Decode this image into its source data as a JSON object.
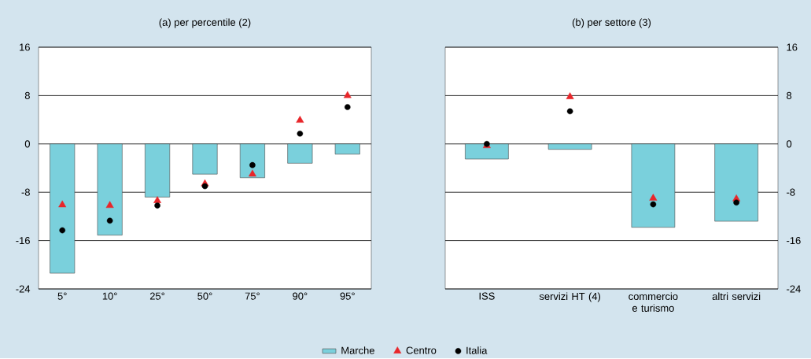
{
  "chart_data": [
    {
      "type": "bar",
      "title": "(a) per percentile (2)",
      "categories": [
        "5°",
        "10°",
        "25°",
        "50°",
        "75°",
        "90°",
        "95°"
      ],
      "ylim": [
        -24,
        16
      ],
      "yticks": [
        -24,
        -16,
        -8,
        0,
        8,
        16
      ],
      "grid": "y",
      "legend": "bottom",
      "series": [
        {
          "name": "Marche",
          "color": "#7ad0dc",
          "values": [
            -21.4,
            -15.1,
            -8.8,
            -5.0,
            -5.6,
            -3.2,
            -1.7
          ]
        },
        {
          "name": "Centro",
          "type": "scatter",
          "marker": "triangle",
          "color": "#e8262a",
          "values": [
            -10.1,
            -10.2,
            -9.4,
            -6.6,
            -5.0,
            3.9,
            8.0
          ]
        },
        {
          "name": "Italia",
          "type": "scatter",
          "marker": "circle",
          "color": "#000000",
          "values": [
            -14.3,
            -12.7,
            -10.2,
            -7.0,
            -3.5,
            1.7,
            6.1
          ]
        }
      ]
    },
    {
      "type": "bar",
      "title": "(b) per settore (3)",
      "categories": [
        "ISS",
        "servizi HT (4)",
        "commercio e turismo",
        "altri servizi"
      ],
      "ylim": [
        -24,
        16
      ],
      "yticks": [
        -24,
        -16,
        -8,
        0,
        8,
        16
      ],
      "grid": "y",
      "series": [
        {
          "color": "#7ad0dc",
          "values": [
            -2.5,
            -0.9,
            -13.8,
            -12.8
          ]
        },
        {
          "type": "scatter",
          "marker": "triangle",
          "color": "#e8262a",
          "values": [
            -0.3,
            7.8,
            -9.0,
            -9.1
          ]
        },
        {
          "type": "scatter",
          "marker": "circle",
          "color": "#000000",
          "values": [
            0.0,
            5.4,
            -10.0,
            -9.7
          ]
        }
      ]
    }
  ]
}
